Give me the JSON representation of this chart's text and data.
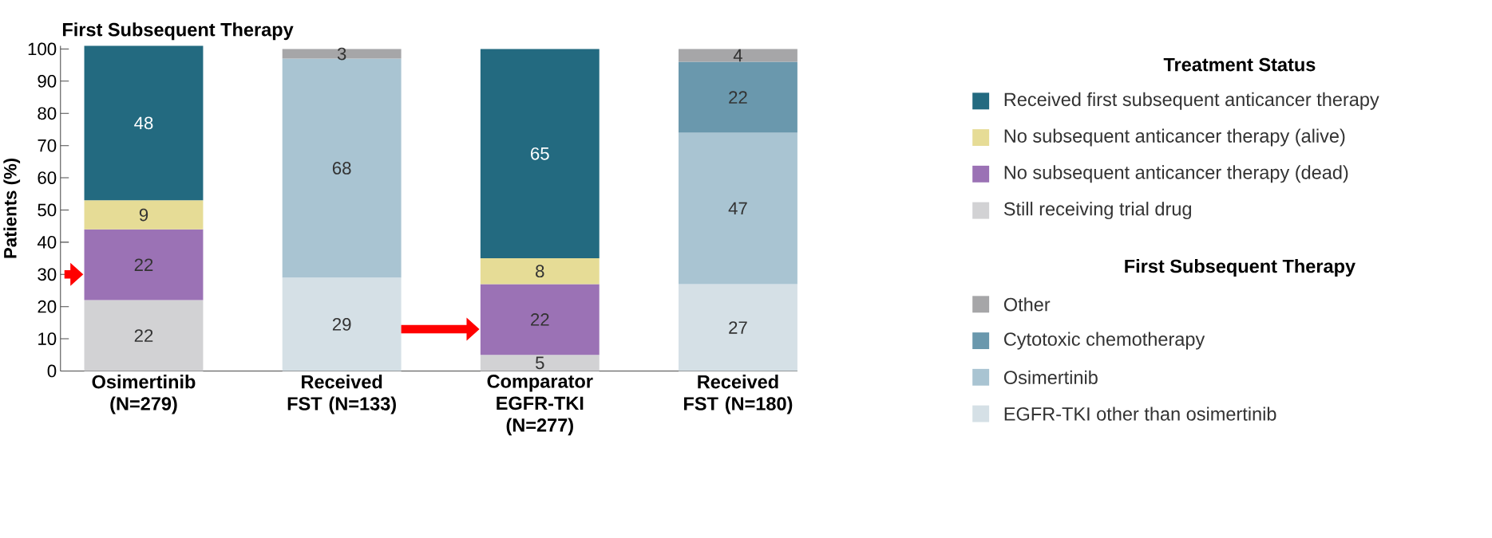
{
  "chart_data": {
    "type": "bar",
    "stacked": true,
    "title": "First Subsequent Therapy",
    "ylabel": "Patients (%)",
    "categories": [
      "Osimertinib (N=279)",
      "Received FST (N=133)",
      "Comparator EGFR-TKI (N=277)",
      "Received FST (N=180)"
    ],
    "series": [
      {
        "name": "Still receiving trial drug",
        "color": "#d2d2d4",
        "values": [
          22,
          null,
          5,
          null
        ]
      },
      {
        "name": "No subsequent anticancer therapy (dead)",
        "color": "#9b72b5",
        "values": [
          22,
          null,
          22,
          null
        ]
      },
      {
        "name": "No subsequent anticancer therapy (alive)",
        "color": "#e6dc96",
        "values": [
          9,
          null,
          8,
          null
        ]
      },
      {
        "name": "Received first subsequent anticancer therapy",
        "color": "#236a80",
        "values": [
          48,
          null,
          65,
          null
        ]
      },
      {
        "name": "EGFR-TKI other than osimertinib",
        "color": "#d5e0e6",
        "values": [
          null,
          29,
          null,
          27
        ]
      },
      {
        "name": "Osimertinib",
        "color": "#a9c4d2",
        "values": [
          null,
          68,
          null,
          47
        ]
      },
      {
        "name": "Cytotoxic chemotherapy",
        "color": "#6a98ad",
        "values": [
          null,
          null,
          null,
          22
        ]
      },
      {
        "name": "Other",
        "color": "#a6a6a8",
        "values": [
          null,
          3,
          null,
          4
        ]
      }
    ],
    "ylim": [
      0,
      101
    ],
    "yticks": [
      0,
      10,
      20,
      30,
      40,
      50,
      60,
      70,
      80,
      90,
      100
    ],
    "data_labels": true,
    "legend": "right",
    "legend_title": "Treatment Status",
    "annotations": [
      "First Subsequent Therapy"
    ]
  }
}
